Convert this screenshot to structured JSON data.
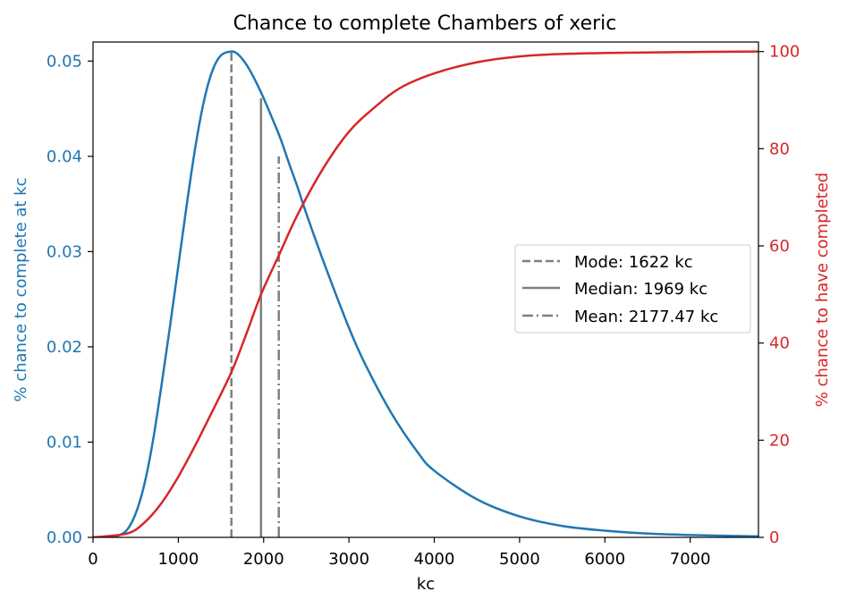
{
  "chart_data": {
    "type": "line",
    "title": "Chance to complete Chambers of xeric",
    "xlabel": "kc",
    "ylabel_left": "% chance to complete at kc",
    "ylabel_right": "% chance to have completed",
    "xlim": [
      0,
      7800
    ],
    "ylim_left": [
      0,
      0.052
    ],
    "ylim_right": [
      0,
      101.96
    ],
    "x_ticks": [
      0,
      1000,
      2000,
      3000,
      4000,
      5000,
      6000,
      7000
    ],
    "y_left_ticks": [
      0.0,
      0.01,
      0.02,
      0.03,
      0.04,
      0.05
    ],
    "y_left_tick_labels": [
      "0.00",
      "0.01",
      "0.02",
      "0.03",
      "0.04",
      "0.05"
    ],
    "y_right_ticks": [
      0,
      20,
      40,
      60,
      80,
      100
    ],
    "grid": false,
    "legend_position": "center-right",
    "colors": {
      "left_axis": "#1f77b4",
      "right_axis": "#d62728",
      "reference_lines": "#7f7f7f"
    },
    "series": [
      {
        "axis": "left",
        "color": "#1f77b4",
        "x": [
          0,
          200,
          300,
          400,
          500,
          600,
          700,
          800,
          900,
          1000,
          1100,
          1200,
          1300,
          1400,
          1500,
          1622,
          1700,
          1800,
          1900,
          2000,
          2100,
          2200,
          2300,
          2400,
          2500,
          2700,
          3000,
          3200,
          3500,
          3800,
          4000,
          4500,
          5000,
          5500,
          6000,
          6500,
          7000,
          7500,
          7800
        ],
        "values": [
          0.0,
          2e-05,
          0.0002,
          0.0008,
          0.0025,
          0.0055,
          0.01,
          0.0158,
          0.022,
          0.0285,
          0.035,
          0.041,
          0.0458,
          0.049,
          0.0506,
          0.051,
          0.0507,
          0.0496,
          0.048,
          0.0461,
          0.044,
          0.0418,
          0.0392,
          0.0367,
          0.034,
          0.029,
          0.022,
          0.018,
          0.013,
          0.009,
          0.007,
          0.004,
          0.0022,
          0.0012,
          0.0007,
          0.0004,
          0.00025,
          0.00015,
          0.0001
        ]
      },
      {
        "axis": "right",
        "color": "#d62728",
        "x": [
          0,
          400,
          600,
          800,
          1000,
          1200,
          1400,
          1622,
          1800,
          1969,
          2177,
          2400,
          2700,
          3000,
          3300,
          3600,
          4000,
          4500,
          5000,
          5500,
          6000,
          7000,
          7800
        ],
        "values": [
          0,
          0.8,
          3.0,
          7.0,
          12.5,
          19.0,
          26.0,
          34.0,
          42.0,
          50.0,
          58.0,
          66.5,
          76.0,
          83.5,
          88.5,
          92.5,
          95.5,
          97.8,
          99.0,
          99.5,
          99.7,
          99.9,
          100.0
        ]
      }
    ],
    "reference_lines": [
      {
        "label": "Mode: 1622 kc",
        "x": 1622,
        "y_top": 0.051,
        "style": "dashed"
      },
      {
        "label": "Median: 1969 kc",
        "x": 1969,
        "y_top": 0.0461,
        "style": "solid"
      },
      {
        "label": "Mean: 2177.47 kc",
        "x": 2177.47,
        "y_top": 0.04,
        "style": "dashdot"
      }
    ]
  }
}
